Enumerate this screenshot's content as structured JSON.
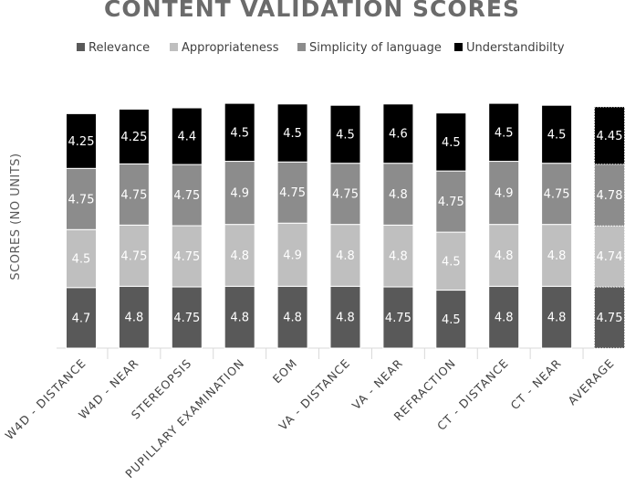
{
  "chart_data": {
    "type": "bar",
    "stacked": true,
    "title": "CONTENT VALIDATION SCORES",
    "ylabel": "SCORES (NO UNITS)",
    "xlabel": "",
    "legend_position": "top",
    "categories": [
      "W4D - DISTANCE",
      "W4D - NEAR",
      "STEREOPSIS",
      "PUPILLARY EXAMINATION",
      "EOM",
      "VA - DISTANCE",
      "VA - NEAR",
      "REFRACTION",
      "CT - DISTANCE",
      "CT - NEAR",
      "AVERAGE"
    ],
    "series": [
      {
        "name": "Relevance",
        "color": "#595959",
        "values": [
          4.7,
          4.8,
          4.75,
          4.8,
          4.8,
          4.8,
          4.75,
          4.5,
          4.8,
          4.8,
          4.75
        ]
      },
      {
        "name": "Appropriateness",
        "color": "#bfbfbf",
        "values": [
          4.5,
          4.75,
          4.75,
          4.8,
          4.9,
          4.8,
          4.8,
          4.5,
          4.8,
          4.8,
          4.74
        ]
      },
      {
        "name": "Simplicity of language",
        "color": "#8c8c8c",
        "values": [
          4.75,
          4.75,
          4.75,
          4.9,
          4.75,
          4.75,
          4.8,
          4.75,
          4.9,
          4.75,
          4.78
        ]
      },
      {
        "name": "Understandibilty",
        "color": "#000000",
        "values": [
          4.25,
          4.25,
          4.4,
          4.5,
          4.5,
          4.5,
          4.6,
          4.5,
          4.5,
          4.5,
          4.45
        ]
      }
    ],
    "labels": [
      [
        "4.7",
        "4.8",
        "4.75",
        "4.8",
        "4.8",
        "4.8",
        "4.75",
        "4.5",
        "4.8",
        "4.8",
        "4.75"
      ],
      [
        "4.5",
        "4.75",
        "4.75",
        "4.8",
        "4.9",
        "4.8",
        "4.8",
        "4.5",
        "4.8",
        "4.8",
        "4.74"
      ],
      [
        "4.75",
        "4.75",
        "4.75",
        "4.9",
        "4.75",
        "4.75",
        "4.8",
        "4.75",
        "4.9",
        "4.75",
        "4.78"
      ],
      [
        "4.25",
        "4.25",
        "4.4",
        "4.5",
        "4.5",
        "4.5",
        "4.6",
        "4.5",
        "4.5",
        "4.5",
        "4.45"
      ]
    ],
    "highlight_category": "AVERAGE",
    "ylim": [
      0,
      20
    ],
    "grid": false
  }
}
